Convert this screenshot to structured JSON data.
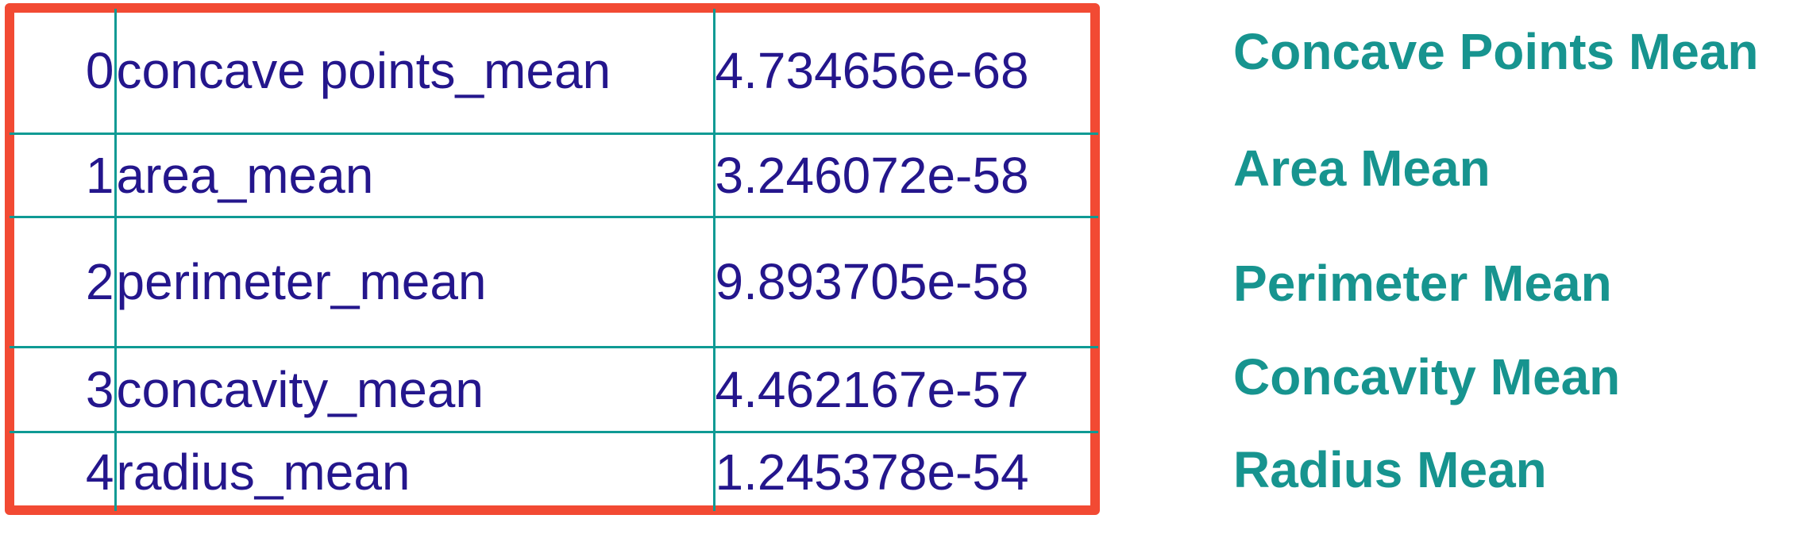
{
  "table": {
    "rows": [
      {
        "index": "0",
        "feature": "concave points_mean",
        "value": "4.734656e-68"
      },
      {
        "index": "1",
        "feature": "area_mean",
        "value": "3.246072e-58"
      },
      {
        "index": "2",
        "feature": "perimeter_mean",
        "value": "9.893705e-58"
      },
      {
        "index": "3",
        "feature": "concavity_mean",
        "value": "4.462167e-57"
      },
      {
        "index": "4",
        "feature": "radius_mean",
        "value": "1.245378e-54"
      }
    ]
  },
  "labels": [
    "Concave Points Mean",
    "Area Mean",
    "Perimeter Mean",
    "Concavity Mean",
    "Radius Mean"
  ],
  "colors": {
    "frame": "#f24a33",
    "index_text": "#f24a33",
    "cell_text": "#24168c",
    "grid": "#0f9a94",
    "label_text": "#17948f"
  }
}
